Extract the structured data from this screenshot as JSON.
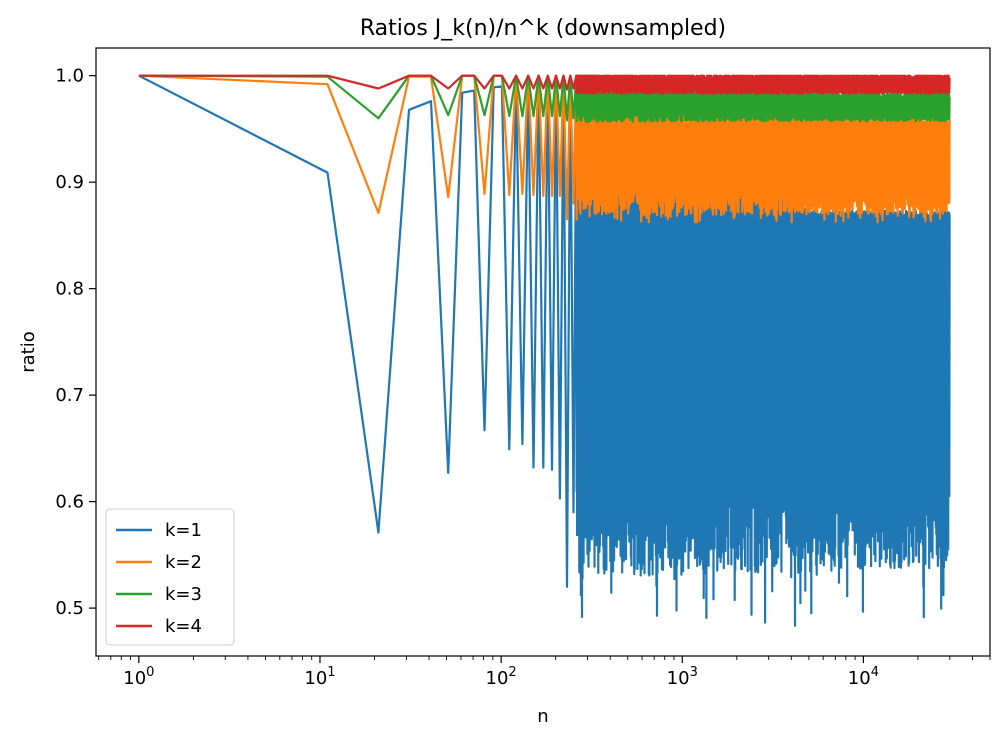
{
  "chart_data": {
    "type": "line",
    "title": "Ratios J_k(n)/n^k (downsampled)",
    "xlabel": "n",
    "ylabel": "ratio",
    "xscale": "log",
    "xlim": [
      0.58,
      50000
    ],
    "ylim": [
      0.455,
      1.026
    ],
    "x_ticks": [
      {
        "value": 1,
        "base": "10",
        "exp": "0"
      },
      {
        "value": 10,
        "base": "10",
        "exp": "1"
      },
      {
        "value": 100,
        "base": "10",
        "exp": "2"
      },
      {
        "value": 1000,
        "base": "10",
        "exp": "3"
      },
      {
        "value": 10000,
        "base": "10",
        "exp": "4"
      }
    ],
    "y_ticks": [
      {
        "value": 0.5,
        "label": "0.5"
      },
      {
        "value": 0.6,
        "label": "0.6"
      },
      {
        "value": 0.7,
        "label": "0.7"
      },
      {
        "value": 0.8,
        "label": "0.8"
      },
      {
        "value": 0.9,
        "label": "0.9"
      },
      {
        "value": 1.0,
        "label": "1.0"
      }
    ],
    "legend_position": "lower-left",
    "dense_from_n": 260,
    "n_max": 30000,
    "series": [
      {
        "name": "k=1",
        "color": "#1f77b4",
        "x": [
          1,
          11,
          21,
          31,
          41,
          51,
          61,
          71,
          81,
          91,
          101,
          111,
          121,
          131,
          141,
          151,
          161,
          171,
          181,
          191,
          201,
          211,
          221,
          231,
          241,
          251
        ],
        "y": [
          1.0,
          0.909,
          0.571,
          0.968,
          0.976,
          0.627,
          0.984,
          0.986,
          0.667,
          0.989,
          0.99,
          0.649,
          0.992,
          0.654,
          0.993,
          0.632,
          0.994,
          0.632,
          0.995,
          0.63,
          0.995,
          0.603,
          0.996,
          0.52,
          0.996,
          0.59
        ],
        "band": {
          "top_start": 0.988,
          "top_end": 0.87,
          "bottom": 0.554,
          "spike_min": 0.48
        }
      },
      {
        "name": "k=2",
        "color": "#ff7f0e",
        "x": [
          1,
          11,
          21,
          31,
          41,
          51,
          61,
          71,
          81,
          91,
          101,
          111,
          121,
          131,
          141,
          151,
          161,
          171,
          181,
          191,
          201,
          211,
          221,
          231,
          241,
          251
        ],
        "y": [
          1.0,
          0.992,
          0.871,
          0.999,
          0.999,
          0.886,
          1.0,
          1.0,
          0.889,
          1.0,
          1.0,
          0.888,
          1.0,
          0.889,
          1.0,
          0.888,
          1.0,
          0.887,
          1.0,
          0.887,
          1.0,
          0.887,
          1.0,
          0.865,
          1.0,
          0.88
        ],
        "band": {
          "top_start": 0.999,
          "top_end": 0.958,
          "bottom": 0.875,
          "spike_min": 0.862
        }
      },
      {
        "name": "k=3",
        "color": "#2ca02c",
        "x": [
          1,
          11,
          21,
          31,
          41,
          51,
          61,
          71,
          81,
          91,
          101,
          111,
          121,
          131,
          141,
          151,
          161,
          171,
          181,
          191,
          201,
          211,
          221,
          231,
          241,
          251
        ],
        "y": [
          1.0,
          0.999,
          0.96,
          1.0,
          1.0,
          0.963,
          1.0,
          1.0,
          0.963,
          1.0,
          1.0,
          0.962,
          1.0,
          0.962,
          1.0,
          0.962,
          1.0,
          0.962,
          1.0,
          0.962,
          1.0,
          0.962,
          1.0,
          0.958,
          1.0,
          0.96
        ],
        "band": {
          "top_start": 1.0,
          "top_end": 0.982,
          "bottom": 0.959,
          "spike_min": 0.957
        }
      },
      {
        "name": "k=4",
        "color": "#d62728",
        "x": [
          1,
          11,
          21,
          31,
          41,
          51,
          61,
          71,
          81,
          91,
          101,
          111,
          121,
          131,
          141,
          151,
          161,
          171,
          181,
          191,
          201,
          211,
          221,
          231,
          241,
          251
        ],
        "y": [
          1.0,
          1.0,
          0.988,
          1.0,
          1.0,
          0.988,
          1.0,
          1.0,
          0.988,
          1.0,
          1.0,
          0.988,
          1.0,
          0.988,
          1.0,
          0.988,
          1.0,
          0.988,
          1.0,
          0.988,
          1.0,
          0.988,
          1.0,
          0.987,
          1.0,
          0.988
        ],
        "band": {
          "top_start": 1.0,
          "top_end": 1.0,
          "bottom": 0.984,
          "spike_min": 0.984
        }
      }
    ]
  }
}
